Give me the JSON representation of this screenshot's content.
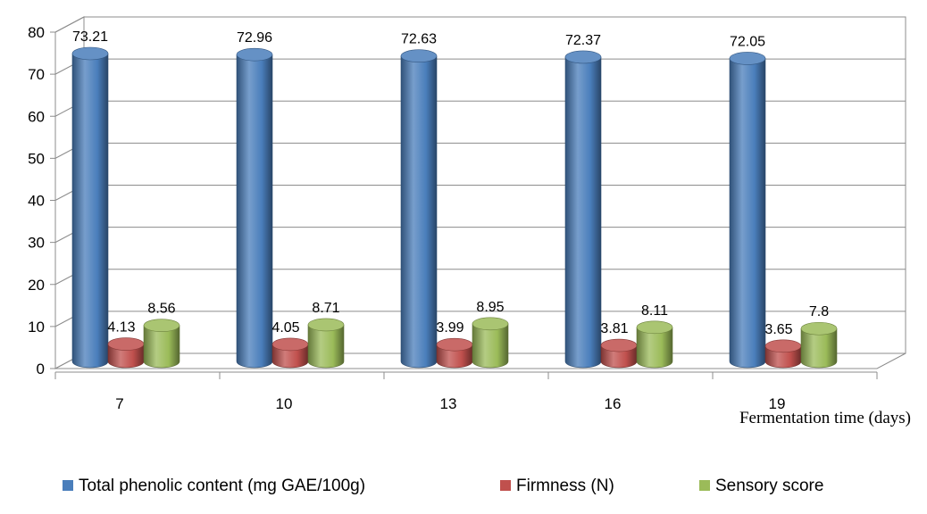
{
  "chart_data": {
    "type": "bar",
    "style": "3d-cylinder",
    "categories": [
      "7",
      "10",
      "13",
      "16",
      "19"
    ],
    "xlabel": "Fermentation time (days)",
    "ylabel": "",
    "ylim": [
      0,
      80
    ],
    "yticks": [
      0,
      10,
      20,
      30,
      40,
      50,
      60,
      70,
      80
    ],
    "grid": true,
    "legend_position": "bottom",
    "series": [
      {
        "name": "Total phenolic content (mg GAE/100g)",
        "color": "#4a7ebb",
        "values": [
          73.21,
          72.96,
          72.63,
          72.37,
          72.05
        ],
        "labels": [
          "73.21",
          "72.96",
          "72.63",
          "72.37",
          "72.05"
        ]
      },
      {
        "name": "Firmness (N)",
        "color": "#c0504d",
        "values": [
          4.13,
          4.05,
          3.99,
          3.81,
          3.65
        ],
        "labels": [
          "4.13",
          "4.05",
          "3.99",
          "3.81",
          "3.65"
        ]
      },
      {
        "name": "Sensory score",
        "color": "#9bbb59",
        "values": [
          8.56,
          8.71,
          8.95,
          8.11,
          7.8
        ],
        "labels": [
          "8.56",
          "8.71",
          "8.95",
          "8.11",
          "7.8"
        ]
      }
    ]
  }
}
